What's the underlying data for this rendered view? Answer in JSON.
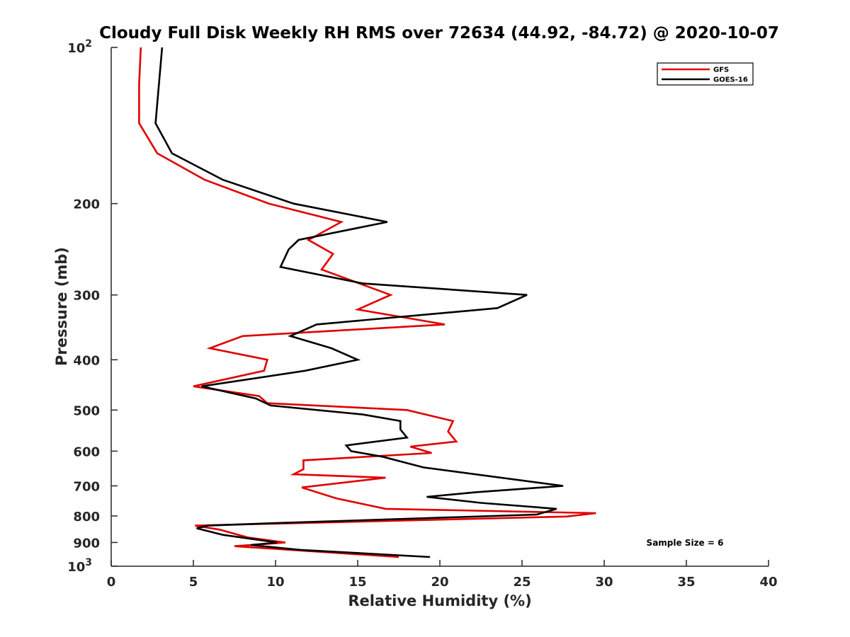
{
  "chart_data": {
    "type": "line",
    "title": "Cloudy Full Disk Weekly RH RMS over 72634 (44.92, -84.72) @ 2020-10-07",
    "xlabel": "Relative Humidity (%)",
    "ylabel": "Pressure (mb)",
    "xlim": [
      0,
      40
    ],
    "ylim": [
      100,
      1000
    ],
    "y_scale": "log",
    "y_reversed": true,
    "grid": false,
    "legend_position": "top-right",
    "x_ticks": [
      {
        "value": 0,
        "label": "0"
      },
      {
        "value": 5,
        "label": "5"
      },
      {
        "value": 10,
        "label": "10"
      },
      {
        "value": 15,
        "label": "15"
      },
      {
        "value": 20,
        "label": "20"
      },
      {
        "value": 25,
        "label": "25"
      },
      {
        "value": 30,
        "label": "30"
      },
      {
        "value": 35,
        "label": "35"
      },
      {
        "value": 40,
        "label": "40"
      }
    ],
    "y_ticks": [
      {
        "value": 100,
        "label": "10",
        "sup": "2"
      },
      {
        "value": 200,
        "label": "200",
        "sup": ""
      },
      {
        "value": 300,
        "label": "300",
        "sup": ""
      },
      {
        "value": 400,
        "label": "400",
        "sup": ""
      },
      {
        "value": 500,
        "label": "500",
        "sup": ""
      },
      {
        "value": 600,
        "label": "600",
        "sup": ""
      },
      {
        "value": 700,
        "label": "700",
        "sup": ""
      },
      {
        "value": 800,
        "label": "800",
        "sup": ""
      },
      {
        "value": 900,
        "label": "900",
        "sup": ""
      },
      {
        "value": 1000,
        "label": "10",
        "sup": "3"
      }
    ],
    "series": [
      {
        "name": "GFS",
        "color": "#e00000",
        "points": [
          [
            1.8,
            100
          ],
          [
            1.7,
            118
          ],
          [
            1.7,
            140
          ],
          [
            2.8,
            160
          ],
          [
            5.7,
            180
          ],
          [
            9.6,
            200
          ],
          [
            14.0,
            217
          ],
          [
            12.0,
            235
          ],
          [
            13.5,
            250
          ],
          [
            12.8,
            268
          ],
          [
            17.0,
            300
          ],
          [
            15.0,
            320
          ],
          [
            20.3,
            342
          ],
          [
            8.0,
            360
          ],
          [
            6.0,
            380
          ],
          [
            9.5,
            400
          ],
          [
            9.3,
            420
          ],
          [
            5.0,
            450
          ],
          [
            9.0,
            470
          ],
          [
            9.5,
            485
          ],
          [
            18.0,
            500
          ],
          [
            20.8,
            525
          ],
          [
            20.5,
            550
          ],
          [
            21.0,
            575
          ],
          [
            18.2,
            588
          ],
          [
            19.5,
            605
          ],
          [
            11.7,
            625
          ],
          [
            11.7,
            650
          ],
          [
            11.1,
            665
          ],
          [
            16.7,
            675
          ],
          [
            11.6,
            705
          ],
          [
            13.7,
            740
          ],
          [
            16.7,
            775
          ],
          [
            29.5,
            790
          ],
          [
            27.7,
            802
          ],
          [
            5.1,
            835
          ],
          [
            6.6,
            850
          ],
          [
            8.3,
            880
          ],
          [
            10.6,
            900
          ],
          [
            7.5,
            915
          ],
          [
            17.5,
            960
          ]
        ]
      },
      {
        "name": "GOES-16",
        "color": "#000000",
        "points": [
          [
            3.1,
            100
          ],
          [
            2.9,
            118
          ],
          [
            2.7,
            140
          ],
          [
            3.7,
            160
          ],
          [
            6.8,
            180
          ],
          [
            11.1,
            200
          ],
          [
            16.8,
            217
          ],
          [
            11.4,
            235
          ],
          [
            10.8,
            245
          ],
          [
            10.3,
            265
          ],
          [
            15.3,
            285
          ],
          [
            25.3,
            300
          ],
          [
            23.5,
            318
          ],
          [
            12.5,
            342
          ],
          [
            10.9,
            360
          ],
          [
            13.4,
            380
          ],
          [
            15.0,
            400
          ],
          [
            11.8,
            420
          ],
          [
            5.5,
            450
          ],
          [
            8.8,
            475
          ],
          [
            9.7,
            490
          ],
          [
            15.3,
            510
          ],
          [
            17.6,
            525
          ],
          [
            17.6,
            545
          ],
          [
            18.0,
            565
          ],
          [
            14.3,
            585
          ],
          [
            14.6,
            600
          ],
          [
            16.5,
            615
          ],
          [
            19.0,
            645
          ],
          [
            27.5,
            700
          ],
          [
            22.2,
            720
          ],
          [
            19.2,
            735
          ],
          [
            22.5,
            755
          ],
          [
            27.1,
            775
          ],
          [
            25.9,
            795
          ],
          [
            10.3,
            825
          ],
          [
            5.9,
            835
          ],
          [
            5.2,
            845
          ],
          [
            6.8,
            870
          ],
          [
            10.1,
            900
          ],
          [
            8.5,
            910
          ],
          [
            11.5,
            930
          ],
          [
            19.4,
            960
          ]
        ]
      }
    ],
    "annotations": [
      {
        "text": "Sample Size = 6",
        "x": 37.5,
        "y": 900
      }
    ]
  }
}
